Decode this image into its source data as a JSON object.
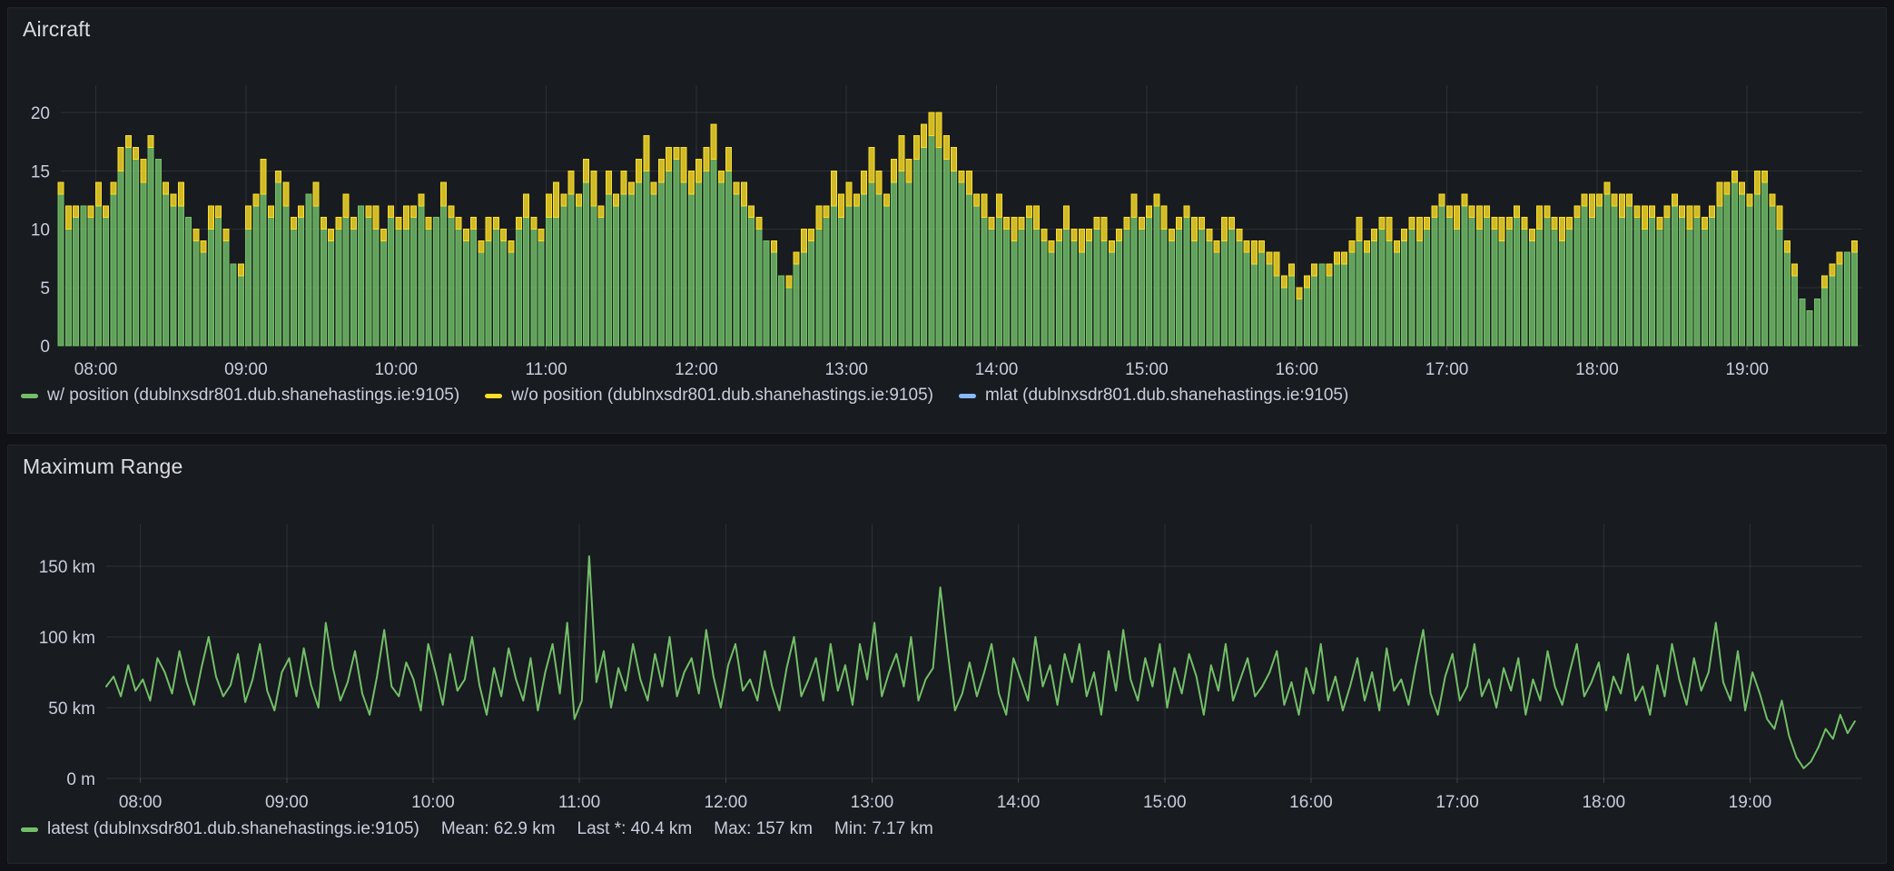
{
  "panels": [
    {
      "title": "Aircraft",
      "legend": [
        {
          "label": "w/ position (dublnxsdr801.dub.shanehastings.ie:9105)",
          "color": "#73BF69"
        },
        {
          "label": "w/o position (dublnxsdr801.dub.shanehastings.ie:9105)",
          "color": "#FADE2A"
        },
        {
          "label": "mlat (dublnxsdr801.dub.shanehastings.ie:9105)",
          "color": "#8AB8FF"
        }
      ]
    },
    {
      "title": "Maximum Range",
      "legend": [
        {
          "label": "latest (dublnxsdr801.dub.shanehastings.ie:9105)",
          "color": "#73BF69"
        }
      ],
      "stats": [
        {
          "name": "mean",
          "text": "Mean: 62.9 km"
        },
        {
          "name": "last",
          "text": "Last *: 40.4 km"
        },
        {
          "name": "max",
          "text": "Max: 157 km"
        },
        {
          "name": "min",
          "text": "Min: 7.17 km"
        }
      ]
    }
  ],
  "chart_data": [
    {
      "type": "bar",
      "stacked": true,
      "title": "Aircraft",
      "x_start_hour": 7.7667,
      "x_step_hours": 0.05,
      "x_ticks": [
        "08:00",
        "09:00",
        "10:00",
        "11:00",
        "12:00",
        "13:00",
        "14:00",
        "15:00",
        "16:00",
        "17:00",
        "18:00",
        "19:00"
      ],
      "x_tick_hours": [
        8,
        9,
        10,
        11,
        12,
        13,
        14,
        15,
        16,
        17,
        18,
        19
      ],
      "ylim": [
        0,
        20
      ],
      "y_ticks": [
        {
          "v": 0,
          "label": "0"
        },
        {
          "v": 5,
          "label": "5"
        },
        {
          "v": 10,
          "label": "10"
        },
        {
          "v": 15,
          "label": "15"
        },
        {
          "v": 20,
          "label": "20"
        }
      ],
      "grid": true,
      "legend_position": "bottom",
      "series": [
        {
          "name": "w/ position",
          "color": "#73BF69",
          "values": [
            13,
            10,
            11,
            12,
            11,
            12,
            11,
            13,
            15,
            17,
            16,
            14,
            17,
            16,
            13,
            12,
            12,
            11,
            9,
            8,
            10,
            11,
            9,
            7,
            6,
            10,
            12,
            13,
            11,
            14,
            12,
            10,
            11,
            13,
            12,
            10,
            9,
            10,
            11,
            10,
            12,
            11,
            10,
            9,
            11,
            10,
            10,
            11,
            12,
            10,
            11,
            12,
            11,
            10,
            9,
            10,
            8,
            9,
            10,
            9,
            8,
            10,
            11,
            10,
            9,
            11,
            11,
            12,
            13,
            12,
            14,
            12,
            11,
            13,
            12,
            13,
            13,
            14,
            15,
            13,
            14,
            15,
            16,
            14,
            13,
            14,
            15,
            16,
            14,
            15,
            13,
            12,
            11,
            10,
            9,
            8,
            6,
            5,
            7,
            8,
            9,
            10,
            11,
            12,
            11,
            12,
            12,
            13,
            14,
            13,
            12,
            14,
            15,
            14,
            16,
            17,
            18,
            17,
            16,
            15,
            14,
            13,
            12,
            11,
            10,
            11,
            10,
            9,
            10,
            11,
            10,
            9,
            8,
            9,
            10,
            9,
            8,
            9,
            10,
            9,
            8,
            9,
            10,
            11,
            10,
            11,
            12,
            10,
            9,
            10,
            11,
            9,
            10,
            9,
            8,
            9,
            10,
            9,
            8,
            7,
            8,
            7,
            6,
            5,
            6,
            4,
            5,
            6,
            7,
            6,
            7,
            7,
            8,
            9,
            8,
            9,
            10,
            9,
            8,
            9,
            10,
            9,
            10,
            11,
            12,
            11,
            10,
            12,
            11,
            10,
            11,
            10,
            9,
            10,
            11,
            10,
            9,
            10,
            11,
            10,
            9,
            10,
            11,
            12,
            11,
            12,
            13,
            12,
            11,
            12,
            11,
            10,
            11,
            10,
            11,
            12,
            11,
            10,
            11,
            10,
            11,
            12,
            13,
            14,
            13,
            12,
            13,
            14,
            12,
            10,
            8,
            6,
            4,
            3,
            4,
            5,
            6,
            7,
            8,
            8
          ]
        },
        {
          "name": "w/o position",
          "color": "#FADE2A",
          "values": [
            1,
            2,
            1,
            0,
            1,
            2,
            1,
            1,
            2,
            1,
            1,
            2,
            1,
            0,
            1,
            1,
            2,
            0,
            1,
            1,
            2,
            1,
            1,
            0,
            1,
            2,
            1,
            3,
            1,
            1,
            2,
            1,
            1,
            0,
            2,
            1,
            1,
            1,
            2,
            1,
            0,
            1,
            2,
            1,
            1,
            1,
            2,
            1,
            1,
            1,
            0,
            2,
            1,
            1,
            1,
            1,
            1,
            2,
            1,
            1,
            1,
            1,
            2,
            1,
            1,
            2,
            3,
            1,
            2,
            1,
            2,
            3,
            1,
            2,
            1,
            2,
            1,
            2,
            3,
            1,
            2,
            2,
            1,
            3,
            2,
            2,
            2,
            3,
            1,
            2,
            1,
            2,
            1,
            1,
            0,
            1,
            0,
            1,
            1,
            2,
            1,
            2,
            1,
            3,
            2,
            2,
            1,
            2,
            3,
            2,
            1,
            2,
            3,
            2,
            2,
            2,
            2,
            3,
            2,
            2,
            1,
            2,
            1,
            2,
            1,
            2,
            1,
            2,
            1,
            1,
            2,
            1,
            1,
            1,
            2,
            1,
            2,
            1,
            1,
            2,
            1,
            1,
            1,
            2,
            1,
            1,
            1,
            2,
            1,
            1,
            1,
            2,
            1,
            1,
            1,
            2,
            1,
            1,
            1,
            2,
            1,
            1,
            2,
            1,
            1,
            1,
            1,
            1,
            0,
            1,
            1,
            1,
            1,
            2,
            1,
            1,
            1,
            2,
            1,
            1,
            1,
            2,
            1,
            1,
            1,
            1,
            2,
            1,
            1,
            2,
            1,
            1,
            2,
            1,
            1,
            1,
            1,
            2,
            1,
            1,
            2,
            1,
            1,
            1,
            2,
            1,
            1,
            1,
            2,
            1,
            1,
            2,
            1,
            1,
            1,
            1,
            1,
            2,
            1,
            1,
            1,
            2,
            1,
            1,
            1,
            1,
            2,
            1,
            1,
            2,
            1,
            1,
            0,
            0,
            0,
            1,
            1,
            1,
            0,
            1
          ]
        },
        {
          "name": "mlat",
          "color": "#8AB8FF",
          "values": []
        }
      ]
    },
    {
      "type": "line",
      "title": "Maximum Range",
      "x_start_hour": 7.7667,
      "x_step_hours": 0.05,
      "x_ticks": [
        "08:00",
        "09:00",
        "10:00",
        "11:00",
        "12:00",
        "13:00",
        "14:00",
        "15:00",
        "16:00",
        "17:00",
        "18:00",
        "19:00"
      ],
      "x_tick_hours": [
        8,
        9,
        10,
        11,
        12,
        13,
        14,
        15,
        16,
        17,
        18,
        19
      ],
      "ylim": [
        0,
        180
      ],
      "unit": "km",
      "y_ticks": [
        {
          "v": 0,
          "label": "0 m"
        },
        {
          "v": 50,
          "label": "50 km"
        },
        {
          "v": 100,
          "label": "100 km"
        },
        {
          "v": 150,
          "label": "150 km"
        }
      ],
      "grid": true,
      "legend_position": "bottom",
      "series": [
        {
          "name": "latest",
          "color": "#73BF69",
          "values": [
            65,
            72,
            58,
            80,
            62,
            70,
            55,
            85,
            75,
            60,
            90,
            68,
            52,
            78,
            100,
            72,
            58,
            66,
            88,
            54,
            70,
            95,
            62,
            48,
            75,
            85,
            58,
            92,
            66,
            50,
            110,
            78,
            55,
            68,
            90,
            60,
            45,
            72,
            105,
            65,
            58,
            82,
            70,
            48,
            95,
            75,
            52,
            88,
            62,
            70,
            100,
            66,
            45,
            78,
            58,
            92,
            70,
            55,
            85,
            48,
            75,
            95,
            60,
            110,
            42,
            55,
            157,
            68,
            90,
            50,
            78,
            62,
            95,
            70,
            55,
            88,
            65,
            100,
            58,
            75,
            85,
            60,
            105,
            72,
            50,
            80,
            95,
            62,
            70,
            55,
            90,
            65,
            48,
            78,
            100,
            58,
            70,
            85,
            55,
            95,
            62,
            80,
            52,
            95,
            70,
            110,
            58,
            75,
            88,
            65,
            100,
            55,
            70,
            78,
            135,
            90,
            48,
            60,
            82,
            58,
            75,
            95,
            60,
            45,
            85,
            70,
            55,
            100,
            65,
            80,
            52,
            88,
            68,
            95,
            58,
            75,
            45,
            90,
            62,
            105,
            70,
            55,
            85,
            65,
            95,
            50,
            78,
            60,
            88,
            72,
            45,
            80,
            62,
            95,
            55,
            70,
            85,
            58,
            65,
            75,
            90,
            52,
            68,
            45,
            78,
            60,
            95,
            55,
            72,
            48,
            65,
            85,
            55,
            75,
            48,
            92,
            62,
            70,
            52,
            80,
            105,
            60,
            45,
            72,
            88,
            55,
            65,
            95,
            58,
            70,
            50,
            78,
            62,
            85,
            45,
            70,
            55,
            90,
            65,
            52,
            75,
            95,
            58,
            68,
            82,
            48,
            72,
            60,
            88,
            55,
            65,
            45,
            80,
            58,
            95,
            70,
            52,
            85,
            62,
            75,
            110,
            68,
            55,
            90,
            48,
            75,
            60,
            42,
            35,
            55,
            30,
            15,
            7.17,
            12,
            22,
            35,
            28,
            45,
            32,
            40.4
          ]
        }
      ]
    }
  ]
}
